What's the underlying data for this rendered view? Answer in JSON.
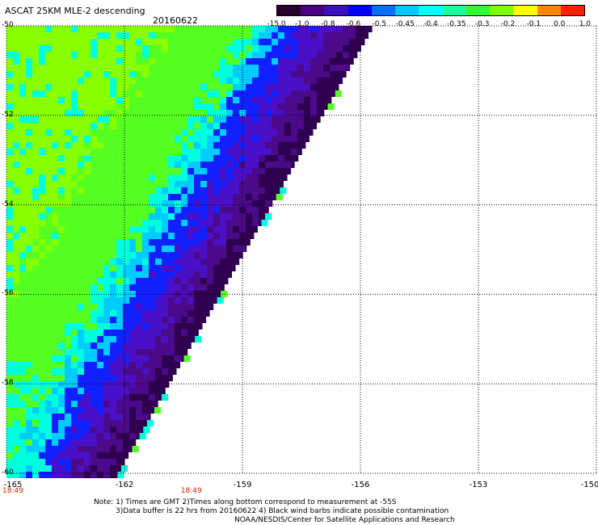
{
  "header": {
    "title": "ASCAT 25KM MLE-2 descending",
    "date": "20160622"
  },
  "colorbar": {
    "labels": [
      "-15.0",
      "-1.0",
      "-0.8",
      "-0.6",
      "-0.5",
      "-0.45",
      "-0.4",
      "-0.35",
      "-0.3",
      "-0.2",
      "-0.1",
      "0.0",
      "1.0"
    ],
    "colors": [
      "#2a0030",
      "#4b0082",
      "#3a10c0",
      "#0000ff",
      "#0070ff",
      "#00c8ff",
      "#00ffff",
      "#20ffa0",
      "#33ff33",
      "#80ff00",
      "#ffff00",
      "#ff8800",
      "#ff2000"
    ]
  },
  "axes": {
    "lat_labels": [
      "-50",
      "-52",
      "-54",
      "-56",
      "-58",
      "-60"
    ],
    "lon_labels": [
      "-165",
      "-162",
      "-159",
      "-156",
      "-153",
      "-150"
    ],
    "lat_range": [
      -60,
      -50
    ],
    "lon_range": [
      -165,
      -150
    ]
  },
  "time_labels": [
    {
      "text": "18:49",
      "lon": -165
    },
    {
      "text": "18:49",
      "lon": -160.3
    }
  ],
  "notes": {
    "line1": "Note: 1) Times are GMT 2)Times along bottom correspond to measurement at -55S",
    "line2": "3)Data buffer is 22 hrs from 20160622 4) Black wind barbs indicate possible contamination",
    "line3": "NOAA/NESDIS/Center for Satellite Applications and Research"
  },
  "swath": {
    "edge_top_lon": -155.7,
    "edge_bottom_lon": -162.2,
    "colors": {
      "green": "#55ff22",
      "light_green": "#88ff00",
      "cyan": "#00ffdd",
      "light_blue": "#00ccff",
      "blue": "#1020ff",
      "indigo": "#4a10c8",
      "purple": "#4a0a8a",
      "dark_purple": "#300050"
    }
  }
}
